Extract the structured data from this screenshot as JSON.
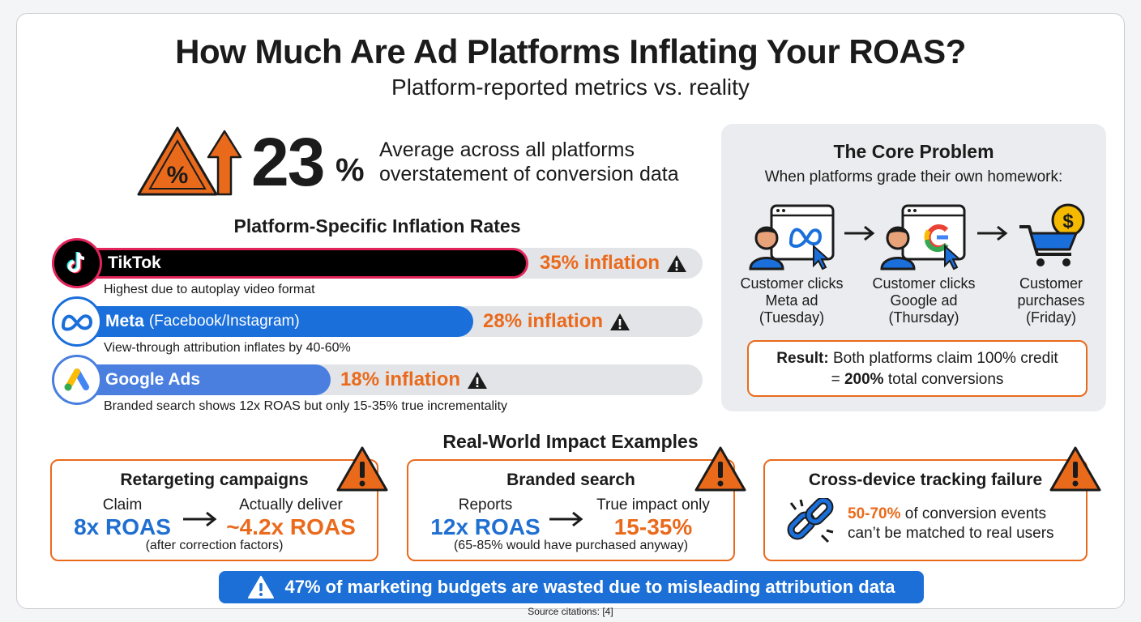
{
  "title": "How Much Are Ad Platforms Inflating Your ROAS?",
  "subtitle": "Platform-reported metrics vs. reality",
  "headline": {
    "value": "23",
    "unit": "%",
    "line1": "Average across all platforms",
    "line2": "overstatement of conversion data"
  },
  "platforms_heading": "Platform-Specific Inflation Rates",
  "platforms": [
    {
      "name": "TikTok",
      "detail": "",
      "inflation_label": "35% inflation",
      "inflation": 35,
      "note": "Highest due to autoplay video format",
      "color": "#000000",
      "icon": "tiktok-icon"
    },
    {
      "name": "Meta",
      "detail": "(Facebook/Instagram)",
      "inflation_label": "28% inflation",
      "inflation": 28,
      "note": "View-through attribution inflates by 40-60%",
      "color": "#1a6fdb",
      "icon": "meta-icon"
    },
    {
      "name": "Google Ads",
      "detail": "",
      "inflation_label": "18% inflation",
      "inflation": 18,
      "note": "Branded search shows 12x ROAS but only 15-35% true incrementality",
      "color": "#4a7fe0",
      "icon": "google-ads-icon"
    }
  ],
  "core_problem": {
    "heading": "The Core Problem",
    "subheading": "When platforms grade their own homework:",
    "steps": [
      {
        "l1": "Customer clicks",
        "l2": "Meta ad",
        "l3": "(Tuesday)"
      },
      {
        "l1": "Customer clicks",
        "l2": "Google ad",
        "l3": "(Thursday)"
      },
      {
        "l1": "Customer",
        "l2": "purchases",
        "l3": "(Friday)"
      }
    ],
    "result_label": "Result:",
    "result_text": "Both platforms claim 100% credit",
    "result_eq": "=",
    "result_bold": "200%",
    "result_tail": "total conversions"
  },
  "examples_heading": "Real-World Impact Examples",
  "examples": [
    {
      "title": "Retargeting campaigns",
      "left_label": "Claim",
      "left_value": "8x ROAS",
      "right_label": "Actually deliver",
      "right_value": "~4.2x ROAS",
      "footnote": "(after correction factors)"
    },
    {
      "title": "Branded search",
      "left_label": "Reports",
      "left_value": "12x ROAS",
      "right_label": "True impact only",
      "right_value": "15-35%",
      "footnote": "(65-85% would have purchased anyway)"
    },
    {
      "title": "Cross-device tracking failure",
      "highlight": "50-70%",
      "line1": "of conversion events",
      "line2": "can’t be matched to real users"
    }
  ],
  "banner": "47% of marketing budgets are wasted due to misleading attribution data",
  "source": "Source citations: [4]",
  "colors": {
    "accent_orange": "#ea6a1c",
    "accent_blue": "#1b6fd6",
    "tiktok_border": "#e2245a"
  }
}
